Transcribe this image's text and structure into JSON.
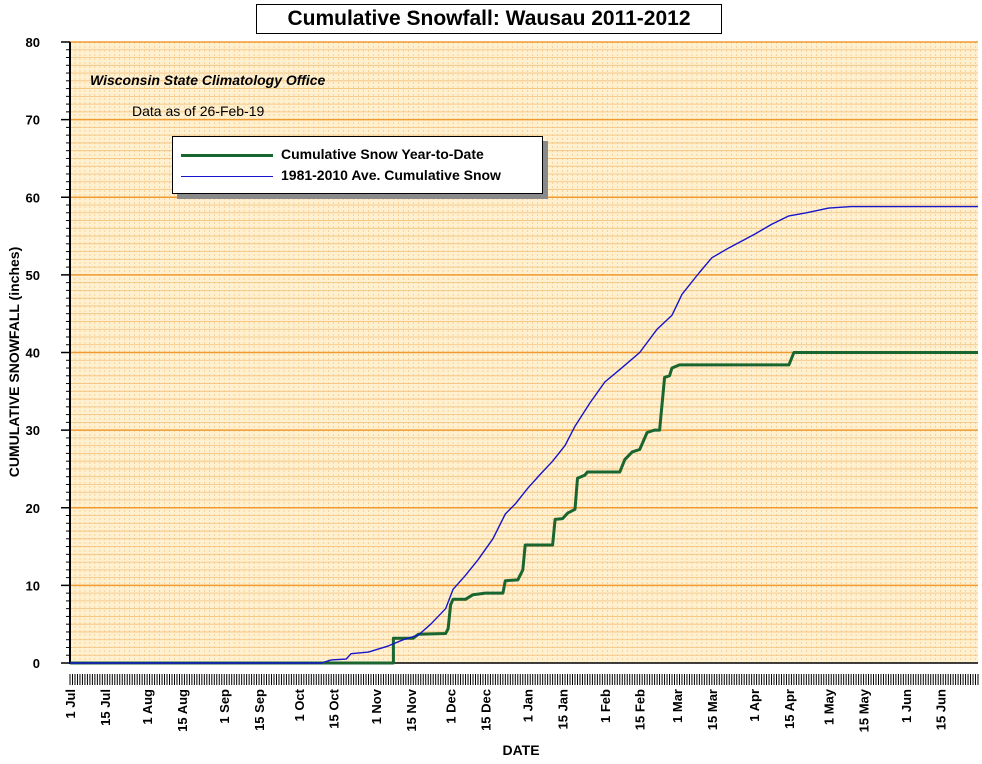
{
  "title": "Cumulative Snowfall: Wausau 2011-2012",
  "source": "Wisconsin State Climatology Office",
  "as_of": "Data as of 26-Feb-19",
  "colors": {
    "background": "#ffffff",
    "plot_bg": "#fff0d0",
    "grid_major": "#f09a30",
    "grid_minor": "#f4c07a",
    "ytd_series": "#1a6630",
    "average_series": "#1515cc"
  },
  "chart_data": {
    "type": "line",
    "xlabel": "DATE",
    "ylabel": "CUMULATIVE SNOWFALL (inches)",
    "xlim": [
      "1 Jul",
      "30 Jun"
    ],
    "ylim": [
      0,
      80
    ],
    "yticks": [
      0,
      10,
      20,
      30,
      40,
      50,
      60,
      70,
      80
    ],
    "xtick_labels": [
      "1 Jul",
      "15 Jul",
      "1 Aug",
      "15 Aug",
      "1 Sep",
      "15 Sep",
      "1 Oct",
      "15 Oct",
      "1 Nov",
      "15 Nov",
      "1 Dec",
      "15 Dec",
      "1 Jan",
      "15 Jan",
      "1 Feb",
      "15 Feb",
      "1 Mar",
      "15 Mar",
      "1 Apr",
      "15 Apr",
      "1 May",
      "15 May",
      "1 Jun",
      "15 Jun"
    ],
    "grid": true,
    "legend": "upper-left",
    "series": [
      {
        "name": "Cumulative Snow Year-to-Date",
        "style": "step",
        "points": [
          [
            "1 Jul",
            0
          ],
          [
            "8 Nov",
            0
          ],
          [
            "8 Nov",
            3.2
          ],
          [
            "16 Nov",
            3.2
          ],
          [
            "18 Nov",
            3.7
          ],
          [
            "29 Nov",
            3.8
          ],
          [
            "30 Nov",
            4.4
          ],
          [
            "1 Dec",
            7.5
          ],
          [
            "2 Dec",
            8.2
          ],
          [
            "7 Dec",
            8.2
          ],
          [
            "10 Dec",
            8.8
          ],
          [
            "15 Dec",
            9.0
          ],
          [
            "22 Dec",
            9.0
          ],
          [
            "23 Dec",
            10.6
          ],
          [
            "28 Dec",
            10.7
          ],
          [
            "30 Dec",
            12.0
          ],
          [
            "31 Dec",
            15.2
          ],
          [
            "11 Jan",
            15.2
          ],
          [
            "12 Jan",
            18.5
          ],
          [
            "15 Jan",
            18.6
          ],
          [
            "17 Jan",
            19.3
          ],
          [
            "20 Jan",
            19.8
          ],
          [
            "21 Jan",
            23.8
          ],
          [
            "24 Jan",
            24.2
          ],
          [
            "25 Jan",
            24.6
          ],
          [
            "7 Feb",
            24.6
          ],
          [
            "9 Feb",
            26.2
          ],
          [
            "12 Feb",
            27.2
          ],
          [
            "15 Feb",
            27.5
          ],
          [
            "18 Feb",
            29.7
          ],
          [
            "21 Feb",
            30.0
          ],
          [
            "23 Feb",
            30.0
          ],
          [
            "25 Feb",
            36.8
          ],
          [
            "27 Feb",
            37.0
          ],
          [
            "28 Feb",
            38.0
          ],
          [
            "2 Mar",
            38.4
          ],
          [
            "15 Apr",
            38.4
          ],
          [
            "17 Apr",
            40.0
          ],
          [
            "30 Jun",
            40.0
          ]
        ]
      },
      {
        "name": "1981-2010 Ave. Cumulative Snow",
        "style": "line",
        "points": [
          [
            "1 Jul",
            0
          ],
          [
            "10 Oct",
            0
          ],
          [
            "14 Oct",
            0.4
          ],
          [
            "20 Oct",
            0.5
          ],
          [
            "22 Oct",
            1.2
          ],
          [
            "29 Oct",
            1.4
          ],
          [
            "6 Nov",
            2.2
          ],
          [
            "12 Nov",
            3.0
          ],
          [
            "18 Nov",
            3.6
          ],
          [
            "23 Nov",
            5.0
          ],
          [
            "29 Nov",
            7.0
          ],
          [
            "2 Dec",
            9.5
          ],
          [
            "7 Dec",
            11.3
          ],
          [
            "12 Dec",
            13.3
          ],
          [
            "18 Dec",
            16.0
          ],
          [
            "23 Dec",
            19.2
          ],
          [
            "27 Dec",
            20.5
          ],
          [
            "1 Jan",
            22.5
          ],
          [
            "6 Jan",
            24.3
          ],
          [
            "11 Jan",
            26.0
          ],
          [
            "16 Jan",
            28.0
          ],
          [
            "20 Jan",
            30.5
          ],
          [
            "26 Jan",
            33.5
          ],
          [
            "1 Feb",
            36.2
          ],
          [
            "7 Feb",
            37.8
          ],
          [
            "15 Feb",
            40.0
          ],
          [
            "22 Feb",
            43.0
          ],
          [
            "28 Feb",
            44.8
          ],
          [
            "3 Mar",
            47.5
          ],
          [
            "10 Mar",
            50.3
          ],
          [
            "15 Mar",
            52.2
          ],
          [
            "22 Mar",
            53.5
          ],
          [
            "1 Apr",
            55.2
          ],
          [
            "8 Apr",
            56.5
          ],
          [
            "15 Apr",
            57.6
          ],
          [
            "22 Apr",
            58.0
          ],
          [
            "1 May",
            58.6
          ],
          [
            "10 May",
            58.8
          ],
          [
            "30 Jun",
            58.8
          ]
        ]
      }
    ]
  }
}
